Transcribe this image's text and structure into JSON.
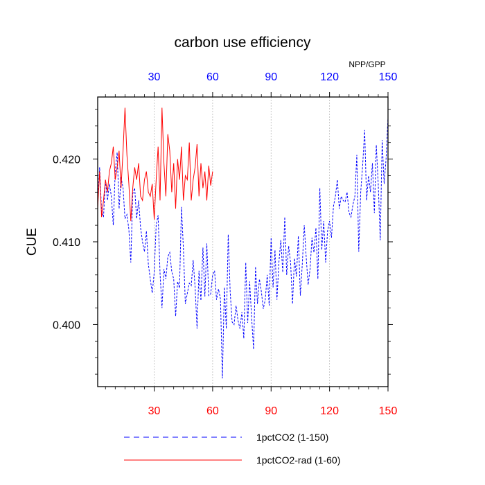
{
  "chart_data": {
    "type": "line",
    "title": "carbon use efficiency",
    "subtitle": "NPP/GPP",
    "ylabel": "CUE",
    "xlabel": "",
    "xlim": [
      1,
      150
    ],
    "ylim": [
      0.3925,
      0.4275
    ],
    "x_ticks": [
      30,
      60,
      90,
      120,
      150
    ],
    "y_ticks": [
      0.4,
      0.41,
      0.42
    ],
    "y_tick_labels": [
      "0.400",
      "0.410",
      "0.420"
    ],
    "top_tick_color": "#0000ff",
    "bottom_tick_color": "#ff0000",
    "grid": "vertical dashed at x ticks",
    "series": [
      {
        "name": "1pctCO2 (1-150)",
        "color": "#0000ff",
        "style": "dashed",
        "x_start": 1,
        "values": [
          0.415,
          0.419,
          0.4138,
          0.413,
          0.4175,
          0.415,
          0.417,
          0.4155,
          0.412,
          0.4185,
          0.4208,
          0.414,
          0.4178,
          0.4165,
          0.4128,
          0.4133,
          0.4115,
          0.4075,
          0.4158,
          0.4165,
          0.4128,
          0.415,
          0.4117,
          0.41,
          0.4088,
          0.4113,
          0.4073,
          0.4055,
          0.4038,
          0.4063,
          0.412,
          0.4132,
          0.4062,
          0.402,
          0.4067,
          0.4055,
          0.4082,
          0.4087,
          0.4064,
          0.4055,
          0.401,
          0.4052,
          0.4044,
          0.4142,
          0.4092,
          0.4025,
          0.4038,
          0.405,
          0.4047,
          0.4078,
          0.4045,
          0.3995,
          0.4065,
          0.4029,
          0.4093,
          0.4034,
          0.4098,
          0.4035,
          0.4037,
          0.406,
          0.4065,
          0.403,
          0.4043,
          0.4031,
          0.3935,
          0.4045,
          0.3995,
          0.4109,
          0.404,
          0.4003,
          0.4,
          0.4023,
          0.4005,
          0.3995,
          0.4015,
          0.3983,
          0.4075,
          0.4002,
          0.4052,
          0.4008,
          0.397,
          0.407,
          0.4025,
          0.4055,
          0.404,
          0.4019,
          0.403,
          0.406,
          0.4023,
          0.4105,
          0.4045,
          0.409,
          0.403,
          0.4075,
          0.4102,
          0.4063,
          0.413,
          0.406,
          0.4095,
          0.4075,
          0.4025,
          0.408,
          0.4058,
          0.4107,
          0.4035,
          0.4073,
          0.412,
          0.4082,
          0.4048,
          0.4067,
          0.4105,
          0.4087,
          0.4117,
          0.4055,
          0.4165,
          0.409,
          0.4125,
          0.4075,
          0.4113,
          0.4125,
          0.4105,
          0.4143,
          0.4155,
          0.4175,
          0.414,
          0.4155,
          0.415,
          0.4148,
          0.416,
          0.4135,
          0.413,
          0.4145,
          0.4155,
          0.4205,
          0.4088,
          0.416,
          0.4192,
          0.4235,
          0.415,
          0.418,
          0.416,
          0.4195,
          0.4135,
          0.4217,
          0.417,
          0.4102,
          0.4223,
          0.417,
          0.42,
          0.425
        ]
      },
      {
        "name": "1pctCO2-rad (1-60)",
        "color": "#ff0000",
        "style": "solid",
        "x_start": 1,
        "values": [
          0.414,
          0.4185,
          0.413,
          0.415,
          0.4175,
          0.416,
          0.4185,
          0.4195,
          0.4215,
          0.4175,
          0.419,
          0.421,
          0.4165,
          0.421,
          0.4262,
          0.4205,
          0.417,
          0.4125,
          0.4165,
          0.419,
          0.4175,
          0.4195,
          0.4155,
          0.415,
          0.4175,
          0.4185,
          0.416,
          0.4155,
          0.417,
          0.4127,
          0.4175,
          0.4215,
          0.415,
          0.4262,
          0.4195,
          0.4155,
          0.423,
          0.421,
          0.416,
          0.4195,
          0.414,
          0.42,
          0.4175,
          0.4215,
          0.415,
          0.418,
          0.4175,
          0.422,
          0.415,
          0.4175,
          0.419,
          0.4218,
          0.4155,
          0.4195,
          0.4165,
          0.4185,
          0.415,
          0.4192,
          0.4168,
          0.4185
        ]
      }
    ]
  }
}
